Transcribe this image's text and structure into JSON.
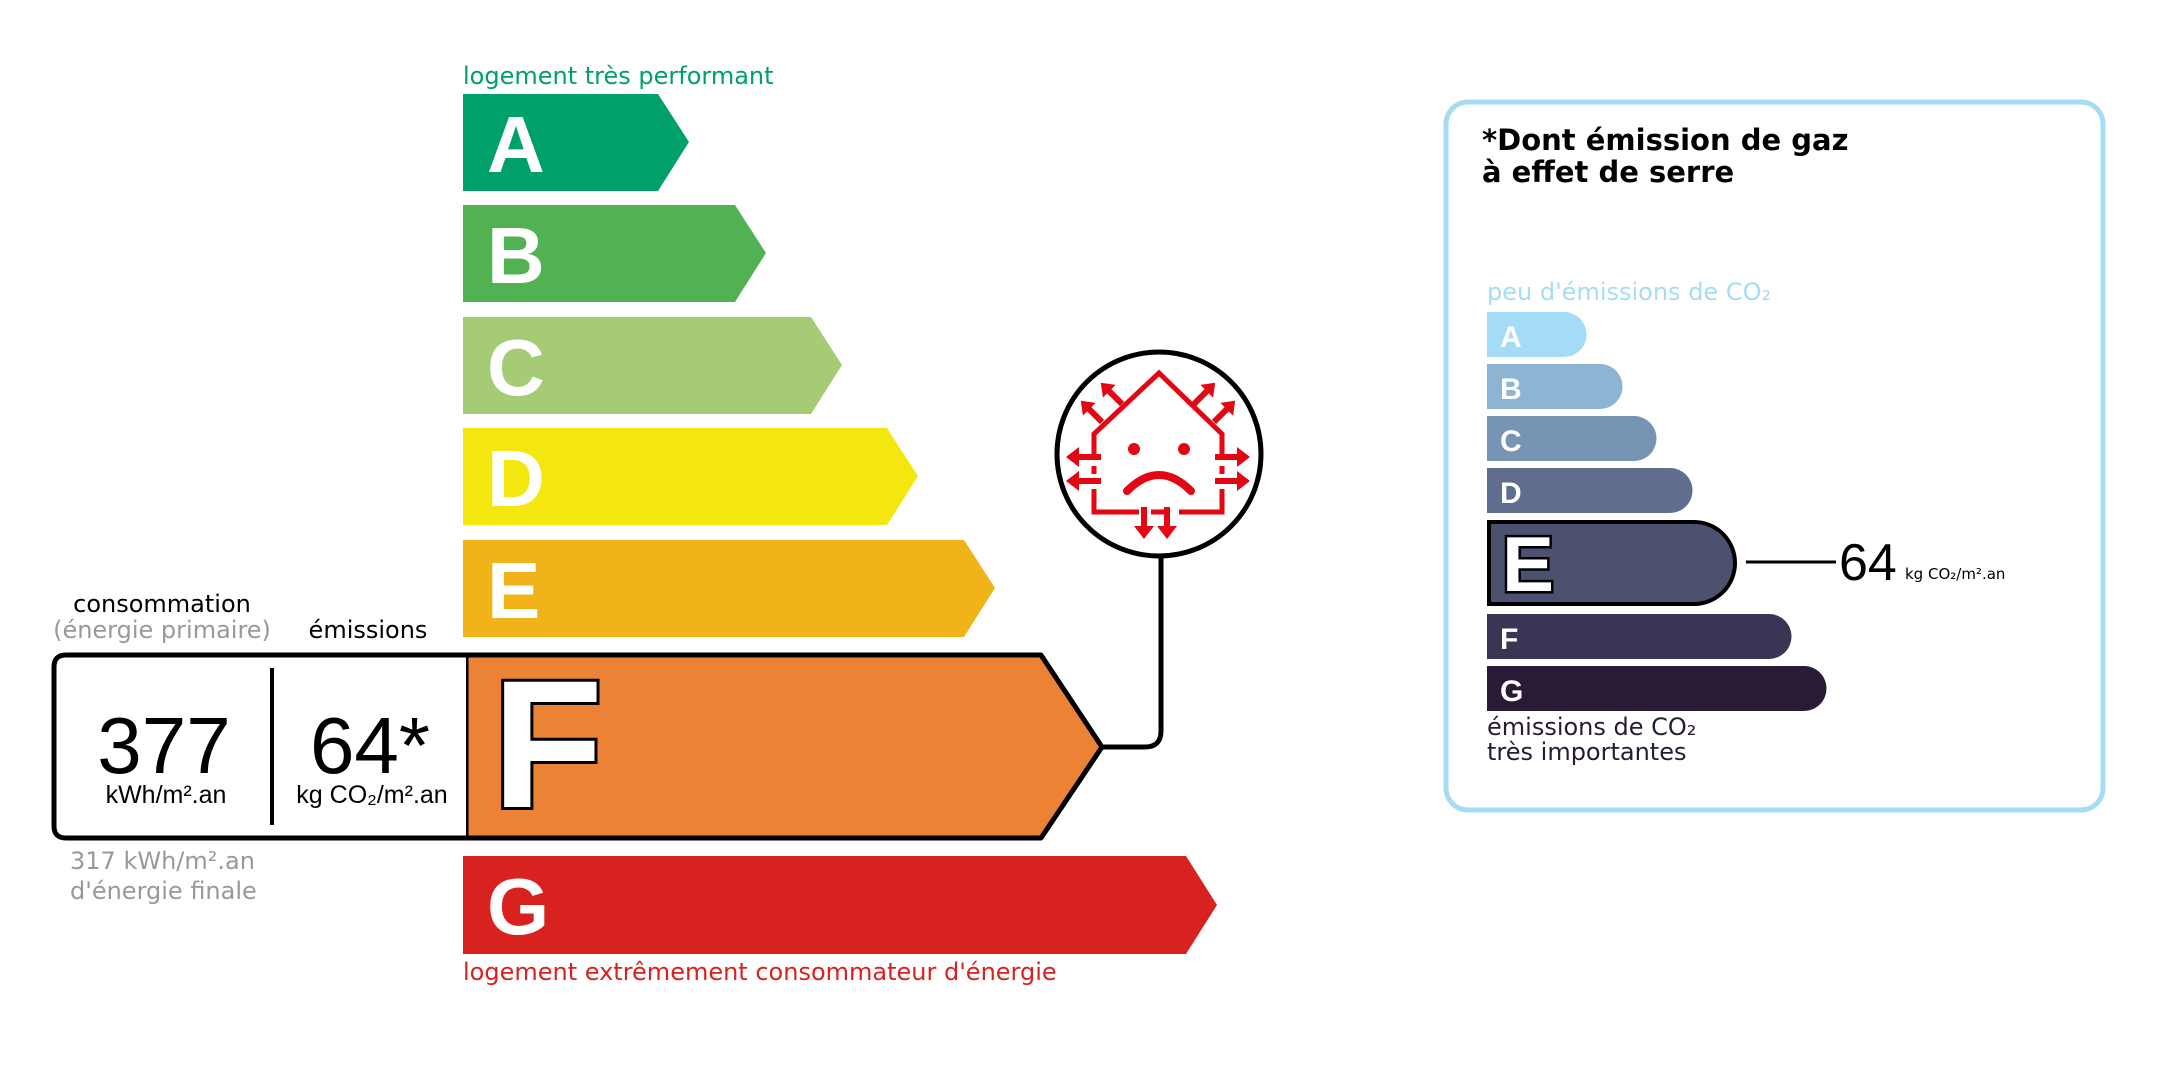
{
  "energy": {
    "top_label": "logement très performant",
    "bottom_label": "logement extrêmement consommateur d'énergie",
    "classes": [
      {
        "letter": "A",
        "color": "#00a06d"
      },
      {
        "letter": "B",
        "color": "#52b153"
      },
      {
        "letter": "C",
        "color": "#a5cc74"
      },
      {
        "letter": "D",
        "color": "#f4e70f"
      },
      {
        "letter": "E",
        "color": "#f0b41a"
      },
      {
        "letter": "F",
        "color": "#eb8235"
      },
      {
        "letter": "G",
        "color": "#d7221f"
      }
    ],
    "current_class": "F",
    "consumption_label": "consommation",
    "consumption_sublabel": "(énergie primaire)",
    "emissions_label": "émissions",
    "consumption_value": "377",
    "consumption_unit": "kWh/m².an",
    "emissions_value": "64*",
    "emissions_unit": "kg CO₂/m².an",
    "final_energy_line1": "317 kWh/m².an",
    "final_energy_line2": "d'énergie finale",
    "badge_icon": "poorly-insulated-house-sad-face-icon"
  },
  "ghg": {
    "title_line1": "*Dont émission de gaz",
    "title_line2": "à effet de serre",
    "top_label": "peu d'émissions de CO₂",
    "bottom_label_line1": "émissions de CO₂",
    "bottom_label_line2": "très importantes",
    "classes": [
      {
        "letter": "A",
        "color": "#a4dbf7"
      },
      {
        "letter": "B",
        "color": "#8db4d3"
      },
      {
        "letter": "C",
        "color": "#7794b5"
      },
      {
        "letter": "D",
        "color": "#5f6e8f"
      },
      {
        "letter": "E",
        "color": "#4d5170"
      },
      {
        "letter": "F",
        "color": "#3a3554"
      },
      {
        "letter": "G",
        "color": "#291b35"
      }
    ],
    "current_class": "E",
    "value": "64",
    "unit": "kg CO₂/m².an",
    "border_color": "#a6dcf6"
  }
}
